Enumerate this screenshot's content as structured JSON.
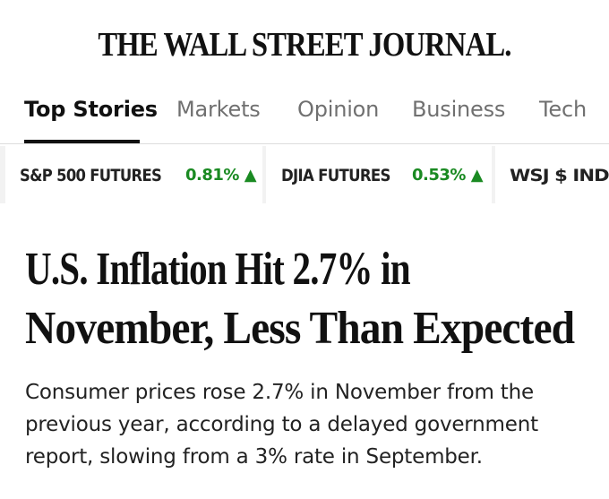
{
  "masthead": {
    "title": "THE WALL STREET JOURNAL."
  },
  "nav": {
    "tabs": [
      {
        "label": "Top Stories",
        "active": true
      },
      {
        "label": "Markets",
        "active": false
      },
      {
        "label": "Opinion",
        "active": false
      },
      {
        "label": "Business",
        "active": false
      },
      {
        "label": "Tech",
        "active": false
      }
    ]
  },
  "ticker": {
    "up_color": "#1a8a22",
    "items": [
      {
        "name": "S&P 500 FUTURES",
        "change": "0.81%",
        "arrow": "▲",
        "direction": "up"
      },
      {
        "name": "DJIA FUTURES",
        "change": "0.53%",
        "arrow": "▲",
        "direction": "up"
      },
      {
        "name": "WSJ $ INDEX",
        "change": "",
        "arrow": "",
        "direction": ""
      }
    ]
  },
  "article": {
    "headline_lines": [
      "U.S. Inflation Hit 2.7% in",
      "November, Less Than Expected"
    ],
    "dek_lines": [
      "Consumer prices rose 2.7% in November from the",
      "previous year, according to a delayed government",
      "report, slowing from a 3% rate in September."
    ]
  }
}
